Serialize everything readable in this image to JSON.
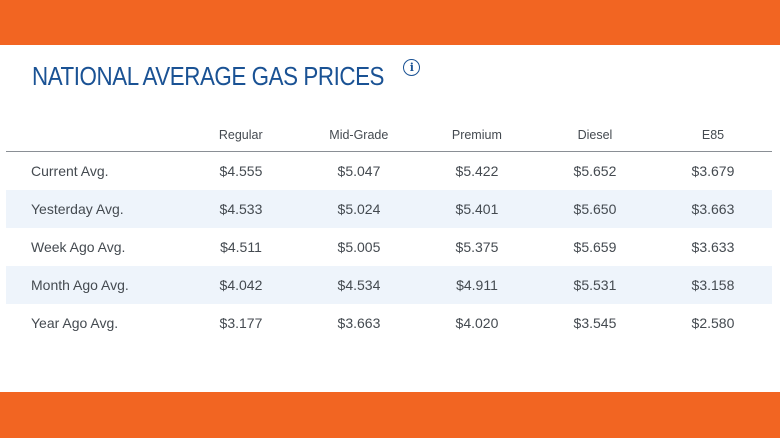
{
  "header": {
    "title": "NATIONAL AVERAGE GAS PRICES",
    "info_icon": "info-icon"
  },
  "colors": {
    "band": "#f26522",
    "title": "#1a5294",
    "row_shade": "#eef4fb",
    "text": "#444a50"
  },
  "table": {
    "columns": [
      "Regular",
      "Mid-Grade",
      "Premium",
      "Diesel",
      "E85"
    ],
    "rows": [
      {
        "label": "Current Avg.",
        "values": [
          "$4.555",
          "$5.047",
          "$5.422",
          "$5.652",
          "$3.679"
        ]
      },
      {
        "label": "Yesterday Avg.",
        "values": [
          "$4.533",
          "$5.024",
          "$5.401",
          "$5.650",
          "$3.663"
        ]
      },
      {
        "label": "Week Ago Avg.",
        "values": [
          "$4.511",
          "$5.005",
          "$5.375",
          "$5.659",
          "$3.633"
        ]
      },
      {
        "label": "Month Ago Avg.",
        "values": [
          "$4.042",
          "$4.534",
          "$4.911",
          "$5.531",
          "$3.158"
        ]
      },
      {
        "label": "Year Ago Avg.",
        "values": [
          "$3.177",
          "$3.663",
          "$4.020",
          "$3.545",
          "$2.580"
        ]
      }
    ]
  }
}
